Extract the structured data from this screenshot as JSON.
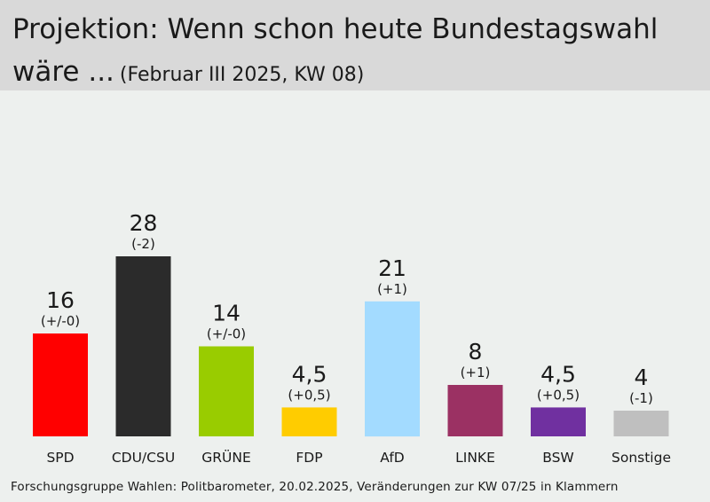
{
  "header": {
    "title_line1": "Projektion: Wenn schon heute Bundestagswahl",
    "title_line2": "wäre ...",
    "subtitle": "(Februar III 2025, KW 08)"
  },
  "footer": {
    "source": "Forschungsgruppe Wahlen: Politbarometer, 20.02.2025, Veränderungen zur KW 07/25 in Klammern"
  },
  "chart_data": {
    "type": "bar",
    "title": "Projektion: Wenn schon heute Bundestagswahl wäre ...",
    "subtitle": "(Februar III 2025, KW 08)",
    "categories": [
      "SPD",
      "CDU/CSU",
      "GRÜNE",
      "FDP",
      "AfD",
      "LINKE",
      "BSW",
      "Sonstige"
    ],
    "values": [
      16,
      28,
      14,
      4.5,
      21,
      8,
      4.5,
      4
    ],
    "value_labels": [
      "16",
      "28",
      "14",
      "4,5",
      "21",
      "8",
      "4,5",
      "4"
    ],
    "change_labels": [
      "(+/-0)",
      "(-2)",
      "(+/-0)",
      "(+0,5)",
      "(+1)",
      "(+1)",
      "(+0,5)",
      "(-1)"
    ],
    "colors": [
      "#ff0000",
      "#2b2b2b",
      "#99cc00",
      "#ffcc00",
      "#a3dbff",
      "#9b3163",
      "#7030a0",
      "#bfbfbf"
    ],
    "ylim": [
      0,
      28
    ],
    "grid": false,
    "legend": "none"
  }
}
